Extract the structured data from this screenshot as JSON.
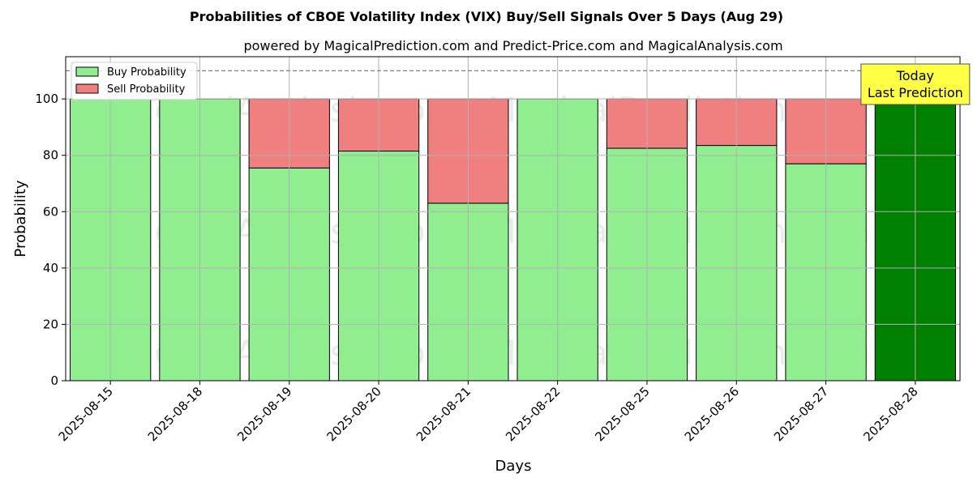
{
  "chart_data": {
    "type": "bar",
    "title": "Probabilities of CBOE Volatility Index (VIX) Buy/Sell Signals Over 5 Days (Aug 29)",
    "subtitle": "powered by MagicalPrediction.com and Predict-Price.com and MagicalAnalysis.com",
    "xlabel": "Days",
    "ylabel": "Probability",
    "ylim": [
      0,
      115
    ],
    "yticks": [
      0,
      20,
      40,
      60,
      80,
      100
    ],
    "grid": true,
    "stacked": true,
    "reference_line": 110,
    "legend_position": "top-left",
    "categories": [
      "2025-08-15",
      "2025-08-18",
      "2025-08-19",
      "2025-08-20",
      "2025-08-21",
      "2025-08-22",
      "2025-08-25",
      "2025-08-26",
      "2025-08-27",
      "2025-08-28"
    ],
    "series": [
      {
        "name": "Buy Probability",
        "color": "#90ee90",
        "highlight_color": "#008000",
        "values": [
          100,
          100,
          75.5,
          81.5,
          63,
          100,
          82.5,
          83.5,
          77,
          100
        ]
      },
      {
        "name": "Sell Probability",
        "color": "#f08080",
        "values": [
          0,
          0,
          24.5,
          18.5,
          37,
          0,
          17.5,
          16.5,
          23,
          0
        ]
      }
    ],
    "highlight_index": 9,
    "annotation": {
      "line1": "Today",
      "line2": "Last Prediction",
      "background": "#ffff44"
    },
    "watermarks": [
      "MagicalAnalysis.com",
      "MagicalPrediction.com"
    ]
  }
}
